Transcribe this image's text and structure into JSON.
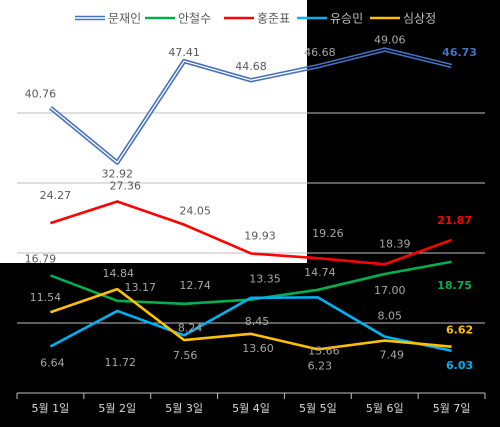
{
  "chart_data": {
    "type": "line",
    "categories": [
      "5월 1일",
      "5월 2일",
      "5월 3일",
      "5월 4일",
      "5월 5일",
      "5월 6일",
      "5월 7일"
    ],
    "series": [
      {
        "name": "문재인",
        "color": "#4472c4",
        "values": [
          40.76,
          32.92,
          47.41,
          44.68,
          46.68,
          49.06,
          46.73
        ]
      },
      {
        "name": "안철수",
        "color": "#00b050",
        "values": [
          16.79,
          13.17,
          12.74,
          13.35,
          14.74,
          17.0,
          18.75
        ]
      },
      {
        "name": "홍준표",
        "color": "#ff0000",
        "values": [
          24.27,
          27.36,
          24.05,
          19.93,
          19.26,
          18.39,
          21.87
        ]
      },
      {
        "name": "유승민",
        "color": "#00b0f0",
        "values": [
          6.64,
          11.72,
          8.24,
          13.6,
          13.66,
          8.05,
          6.03
        ]
      },
      {
        "name": "심상정",
        "color": "#ffc000",
        "values": [
          11.54,
          14.84,
          7.56,
          8.45,
          6.23,
          7.49,
          6.62
        ]
      }
    ],
    "ylim": [
      0,
      50
    ],
    "grid": true,
    "legend": "top",
    "data_labels": true
  }
}
